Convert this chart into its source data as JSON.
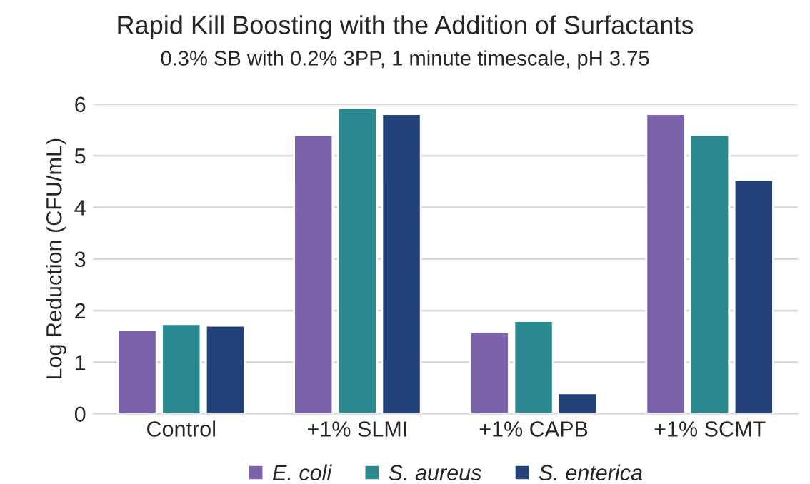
{
  "chart_data": {
    "type": "bar",
    "title": "Rapid Kill Boosting with the Addition of Surfactants",
    "subtitle": "0.3% SB with 0.2% 3PP, 1 minute timescale, pH 3.75",
    "ylabel": "Log Reduction (CFU/mL)",
    "categories": [
      "Control",
      "+1% SLMI",
      "+1% CAPB",
      "+1% SCMT"
    ],
    "series": [
      {
        "name": "E. coli",
        "color": "#7b62ab",
        "values": [
          1.62,
          5.4,
          1.58,
          5.81
        ]
      },
      {
        "name": "S. aureus",
        "color": "#2a8890",
        "values": [
          1.74,
          5.93,
          1.8,
          5.4
        ]
      },
      {
        "name": "S. enterica",
        "color": "#24427a",
        "values": [
          1.71,
          5.81,
          0.4,
          4.53
        ]
      }
    ],
    "ylim": [
      0,
      6
    ],
    "yticks": [
      0,
      1,
      2,
      3,
      4,
      5,
      6
    ],
    "grid": "y",
    "legend": "bottom"
  }
}
